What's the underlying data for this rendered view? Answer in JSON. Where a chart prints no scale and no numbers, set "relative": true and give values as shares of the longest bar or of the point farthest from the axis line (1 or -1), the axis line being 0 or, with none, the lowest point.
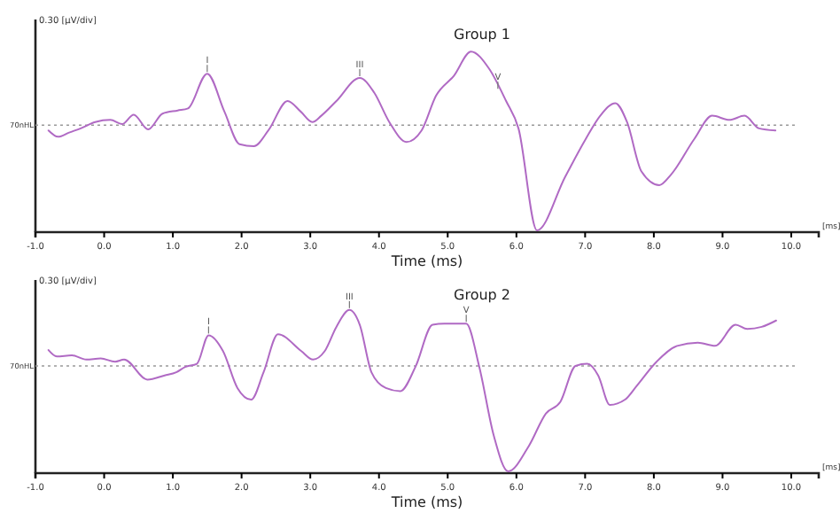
{
  "chart_data": [
    {
      "type": "line",
      "title": "Group 1",
      "xlabel": "Time (ms)",
      "ylabel": "0.30 [µV/div]",
      "relative": true,
      "color": "#b06ac4",
      "xlim": [
        -1.0,
        10.4
      ],
      "xticks": [
        {
          "value": -1,
          "label": "-1.0"
        },
        {
          "value": 0,
          "label": "0.0"
        },
        {
          "value": 1,
          "label": "1.0"
        },
        {
          "value": 2,
          "label": "2.0"
        },
        {
          "value": 3,
          "label": "3.0"
        },
        {
          "value": 4,
          "label": "4.0"
        },
        {
          "value": 5,
          "label": "5.0"
        },
        {
          "value": 6,
          "label": "6.0"
        },
        {
          "value": 7,
          "label": "7.0"
        },
        {
          "value": 8,
          "label": "8.0"
        },
        {
          "value": 9,
          "label": "9.0"
        },
        {
          "value": 10,
          "label": "10.0"
        }
      ],
      "x": [
        -0.81,
        -0.67,
        -0.51,
        -0.34,
        -0.13,
        0.09,
        0.26,
        0.43,
        0.64,
        0.85,
        1.07,
        1.22,
        1.5,
        1.75,
        1.97,
        2.18,
        2.39,
        2.67,
        2.86,
        3.03,
        3.16,
        3.38,
        3.72,
        3.93,
        4.15,
        4.4,
        4.62,
        4.83,
        5.09,
        5.34,
        5.6,
        5.85,
        6.03,
        6.3,
        6.71,
        7.01,
        7.22,
        7.44,
        7.61,
        7.82,
        8.08,
        8.25,
        8.59,
        8.85,
        9.1,
        9.32,
        9.53,
        9.77
      ],
      "values": [
        -0.05,
        -0.11,
        -0.07,
        -0.03,
        0.03,
        0.05,
        0.01,
        0.1,
        -0.04,
        0.11,
        0.14,
        0.16,
        0.49,
        0.13,
        -0.18,
        -0.2,
        -0.05,
        0.23,
        0.13,
        0.03,
        0.09,
        0.23,
        0.45,
        0.31,
        0.03,
        -0.16,
        -0.05,
        0.28,
        0.47,
        0.7,
        0.54,
        0.23,
        -0.03,
        -1.0,
        -0.49,
        -0.13,
        0.09,
        0.21,
        0.03,
        -0.44,
        -0.57,
        -0.47,
        -0.13,
        0.09,
        0.05,
        0.09,
        -0.03,
        -0.05
      ],
      "ref_lines": [
        {
          "axis": "y",
          "value": 0,
          "label": "70nHL",
          "color": "#999999",
          "line_style": "dotted"
        }
      ],
      "annotations": [
        {
          "text": "I",
          "x": 1.5,
          "y": 0.49
        },
        {
          "text": "III",
          "x": 3.72,
          "y": 0.45
        },
        {
          "text": "V",
          "x": 5.73,
          "y": 0.33
        },
        "[ms]"
      ]
    },
    {
      "type": "line",
      "title": "Group 2",
      "xlabel": "Time (ms)",
      "ylabel": "0.30 [µV/div]",
      "relative": true,
      "color": "#b06ac4",
      "xlim": [
        -1.0,
        10.4
      ],
      "xticks": [
        {
          "value": -1,
          "label": "-1.0"
        },
        {
          "value": 0,
          "label": "0.0"
        },
        {
          "value": 1,
          "label": "1.0"
        },
        {
          "value": 2,
          "label": "2.0"
        },
        {
          "value": 3,
          "label": "3.0"
        },
        {
          "value": 4,
          "label": "4.0"
        },
        {
          "value": 5,
          "label": "5.0"
        },
        {
          "value": 6,
          "label": "6.0"
        },
        {
          "value": 7,
          "label": "7.0"
        },
        {
          "value": 8,
          "label": "8.0"
        },
        {
          "value": 9,
          "label": "9.0"
        },
        {
          "value": 10,
          "label": "10.0"
        }
      ],
      "x": [
        -0.81,
        -0.69,
        -0.47,
        -0.26,
        -0.05,
        0.16,
        0.29,
        0.63,
        0.88,
        1.05,
        1.18,
        1.35,
        1.52,
        1.73,
        1.94,
        2.14,
        2.32,
        2.53,
        2.87,
        3.04,
        3.21,
        3.38,
        3.57,
        3.72,
        3.89,
        4.1,
        4.31,
        4.53,
        4.78,
        4.95,
        5.27,
        5.46,
        5.67,
        5.88,
        6.18,
        6.43,
        6.64,
        6.86,
        7.03,
        7.19,
        7.36,
        7.58,
        7.75,
        8.04,
        8.34,
        8.64,
        8.89,
        9.19,
        9.36,
        9.57,
        9.78
      ],
      "values": [
        0.15,
        0.09,
        0.1,
        0.06,
        0.07,
        0.04,
        0.06,
        -0.13,
        -0.09,
        -0.06,
        -0.01,
        0.02,
        0.29,
        0.14,
        -0.21,
        -0.32,
        -0.06,
        0.3,
        0.14,
        0.06,
        0.14,
        0.37,
        0.53,
        0.39,
        -0.06,
        -0.21,
        -0.24,
        -0.01,
        0.39,
        0.4,
        0.4,
        -0.01,
        -0.66,
        -1.0,
        -0.76,
        -0.45,
        -0.34,
        0.0,
        0.02,
        -0.09,
        -0.37,
        -0.32,
        -0.19,
        0.04,
        0.19,
        0.22,
        0.19,
        0.39,
        0.35,
        0.37,
        0.43
      ],
      "ref_lines": [
        {
          "axis": "y",
          "value": 0,
          "label": "70nHL",
          "color": "#999999",
          "line_style": "dotted"
        }
      ],
      "annotations": [
        {
          "text": "I",
          "x": 1.52,
          "y": 0.29
        },
        {
          "text": "III",
          "x": 3.57,
          "y": 0.53
        },
        {
          "text": "V",
          "x": 5.27,
          "y": 0.4
        },
        "[ms]"
      ]
    }
  ]
}
